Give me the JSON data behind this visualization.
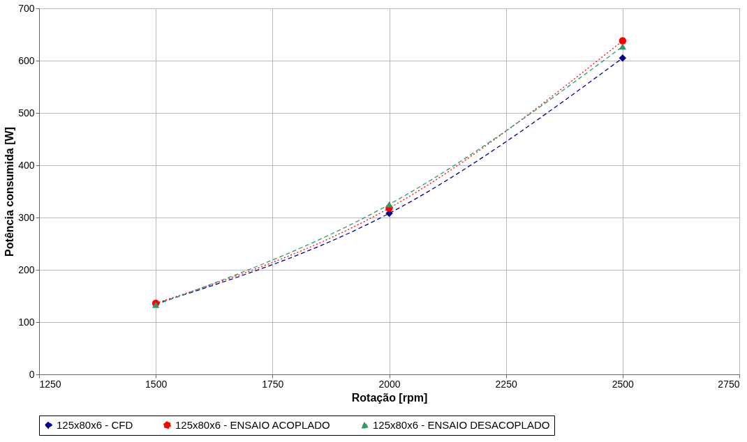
{
  "chart_data": {
    "type": "line",
    "xlabel": "Rotação [rpm]",
    "ylabel": "Potência consumida [W]",
    "x": [
      1500,
      2000,
      2500
    ],
    "xlim": [
      1250,
      2750
    ],
    "xticks": [
      1250,
      1500,
      1750,
      2000,
      2250,
      2500,
      2750
    ],
    "ylim": [
      0,
      700
    ],
    "yticks": [
      0,
      100,
      200,
      300,
      400,
      500,
      600,
      700
    ],
    "grid": true,
    "legend": "bottom",
    "series": [
      {
        "name": "125x80x6 - CFD",
        "color": "#000099",
        "values": [
          135,
          308,
          605
        ],
        "marker": "diamond",
        "line_style": "dashed"
      },
      {
        "name": "125x80x6 - ENSAIO ACOPLADO",
        "color": "#ff0000",
        "values": [
          136,
          318,
          638
        ],
        "marker": "circle",
        "line_style": "dotted"
      },
      {
        "name": "125x80x6 - ENSAIO DESACOPLADO",
        "color": "#339966",
        "values": [
          133,
          325,
          627
        ],
        "marker": "triangle",
        "line_style": "dashed"
      }
    ]
  }
}
